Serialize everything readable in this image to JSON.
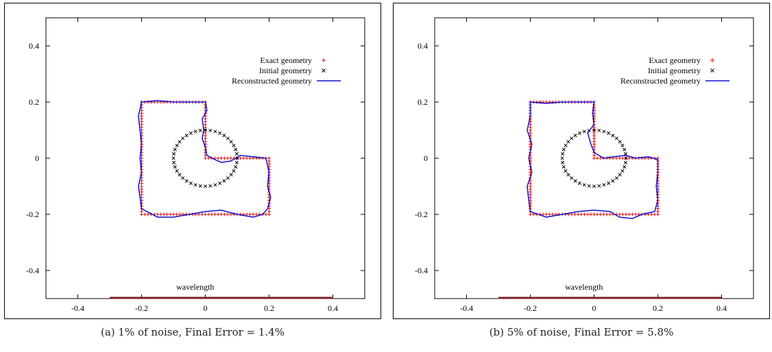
{
  "chart_data": [
    {
      "type": "scatter",
      "caption": "(a) 1% of noise, Final Error = 1.4%",
      "xlim": [
        -0.5,
        0.5
      ],
      "ylim": [
        -0.5,
        0.5
      ],
      "xticks": [
        -0.4,
        -0.2,
        0,
        0.2,
        0.4
      ],
      "yticks": [
        -0.4,
        -0.2,
        0,
        0.2,
        0.4
      ],
      "xtick_labels": [
        "-0.4",
        "-0.2",
        "0",
        "0.2",
        "0.4"
      ],
      "ytick_labels": [
        "-0.4",
        "-0.2",
        "0",
        "0.2",
        "0.4"
      ],
      "grid": false,
      "legend_position": "top-right",
      "annotation": {
        "text": "wavelength",
        "x_start": -0.3,
        "x_end": 0.4,
        "y": -0.5,
        "color": "#7a1f1f"
      },
      "series": [
        {
          "name": "Exact geometry",
          "marker": "+",
          "color": "#e01010",
          "shape": "L-shaped polygon",
          "vertices": [
            [
              -0.2,
              -0.2
            ],
            [
              0.2,
              -0.2
            ],
            [
              0.2,
              0
            ],
            [
              0,
              0
            ],
            [
              0,
              0.2
            ],
            [
              -0.2,
              0.2
            ]
          ]
        },
        {
          "name": "Initial geometry",
          "marker": "x",
          "color": "#000000",
          "shape": "circle",
          "center": [
            0,
            0
          ],
          "radius": 0.1,
          "points": 40
        },
        {
          "name": "Reconstructed geometry",
          "marker": "line",
          "color": "#1010d0",
          "points": [
            [
              -0.2,
              0.2
            ],
            [
              -0.15,
              0.205
            ],
            [
              -0.1,
              0.2
            ],
            [
              -0.05,
              0.2
            ],
            [
              0,
              0.2
            ],
            [
              0.005,
              0.17
            ],
            [
              -0.01,
              0.14
            ],
            [
              -0.005,
              0.1
            ],
            [
              -0.01,
              0.07
            ],
            [
              0,
              0.04
            ],
            [
              0.005,
              0.01
            ],
            [
              0.03,
              -0.005
            ],
            [
              0.05,
              -0.015
            ],
            [
              0.08,
              -0.01
            ],
            [
              0.11,
              0.01
            ],
            [
              0.15,
              0.005
            ],
            [
              0.19,
              0
            ],
            [
              0.2,
              -0.05
            ],
            [
              0.195,
              -0.1
            ],
            [
              0.205,
              -0.14
            ],
            [
              0.195,
              -0.18
            ],
            [
              0.18,
              -0.2
            ],
            [
              0.15,
              -0.21
            ],
            [
              0.1,
              -0.2
            ],
            [
              0.05,
              -0.185
            ],
            [
              0,
              -0.19
            ],
            [
              -0.05,
              -0.2
            ],
            [
              -0.1,
              -0.21
            ],
            [
              -0.15,
              -0.21
            ],
            [
              -0.2,
              -0.18
            ],
            [
              -0.205,
              -0.14
            ],
            [
              -0.21,
              -0.1
            ],
            [
              -0.2,
              -0.05
            ],
            [
              -0.205,
              0
            ],
            [
              -0.2,
              0.05
            ],
            [
              -0.205,
              0.1
            ],
            [
              -0.21,
              0.15
            ],
            [
              -0.2,
              0.2
            ]
          ]
        }
      ]
    },
    {
      "type": "scatter",
      "caption": "(b) 5% of noise, Final Error = 5.8%",
      "xlim": [
        -0.5,
        0.5
      ],
      "ylim": [
        -0.5,
        0.5
      ],
      "xticks": [
        -0.4,
        -0.2,
        0,
        0.2,
        0.4
      ],
      "yticks": [
        -0.4,
        -0.2,
        0,
        0.2,
        0.4
      ],
      "xtick_labels": [
        "-0.4",
        "-0.2",
        "0",
        "0.2",
        "0.4"
      ],
      "ytick_labels": [
        "-0.4",
        "-0.2",
        "0",
        "0.2",
        "0.4"
      ],
      "grid": false,
      "legend_position": "top-right",
      "annotation": {
        "text": "wavelength",
        "x_start": -0.3,
        "x_end": 0.4,
        "y": -0.5,
        "color": "#7a1f1f"
      },
      "series": [
        {
          "name": "Exact geometry",
          "marker": "+",
          "color": "#e01010",
          "shape": "L-shaped polygon",
          "vertices": [
            [
              -0.2,
              -0.2
            ],
            [
              0.2,
              -0.2
            ],
            [
              0.2,
              0
            ],
            [
              0,
              0
            ],
            [
              0,
              0.2
            ],
            [
              -0.2,
              0.2
            ]
          ]
        },
        {
          "name": "Initial geometry",
          "marker": "x",
          "color": "#000000",
          "shape": "circle",
          "center": [
            0,
            0
          ],
          "radius": 0.1,
          "points": 40
        },
        {
          "name": "Reconstructed geometry",
          "marker": "line",
          "color": "#1010d0",
          "points": [
            [
              -0.2,
              0.2
            ],
            [
              -0.15,
              0.195
            ],
            [
              -0.1,
              0.2
            ],
            [
              -0.05,
              0.2
            ],
            [
              0,
              0.2
            ],
            [
              -0.005,
              0.16
            ],
            [
              0,
              0.12
            ],
            [
              -0.02,
              0.09
            ],
            [
              -0.01,
              0.05
            ],
            [
              0,
              0.02
            ],
            [
              0.03,
              0
            ],
            [
              0.06,
              0.005
            ],
            [
              0.1,
              0.01
            ],
            [
              0.13,
              0.0
            ],
            [
              0.17,
              0.005
            ],
            [
              0.2,
              -0.005
            ],
            [
              0.2,
              -0.05
            ],
            [
              0.195,
              -0.1
            ],
            [
              0.2,
              -0.15
            ],
            [
              0.19,
              -0.19
            ],
            [
              0.15,
              -0.2
            ],
            [
              0.12,
              -0.215
            ],
            [
              0.08,
              -0.21
            ],
            [
              0.05,
              -0.19
            ],
            [
              0,
              -0.185
            ],
            [
              -0.05,
              -0.19
            ],
            [
              -0.1,
              -0.2
            ],
            [
              -0.15,
              -0.21
            ],
            [
              -0.2,
              -0.19
            ],
            [
              -0.205,
              -0.15
            ],
            [
              -0.21,
              -0.1
            ],
            [
              -0.195,
              -0.05
            ],
            [
              -0.205,
              0
            ],
            [
              -0.195,
              0.05
            ],
            [
              -0.21,
              0.1
            ],
            [
              -0.2,
              0.15
            ],
            [
              -0.2,
              0.2
            ]
          ]
        }
      ]
    }
  ]
}
